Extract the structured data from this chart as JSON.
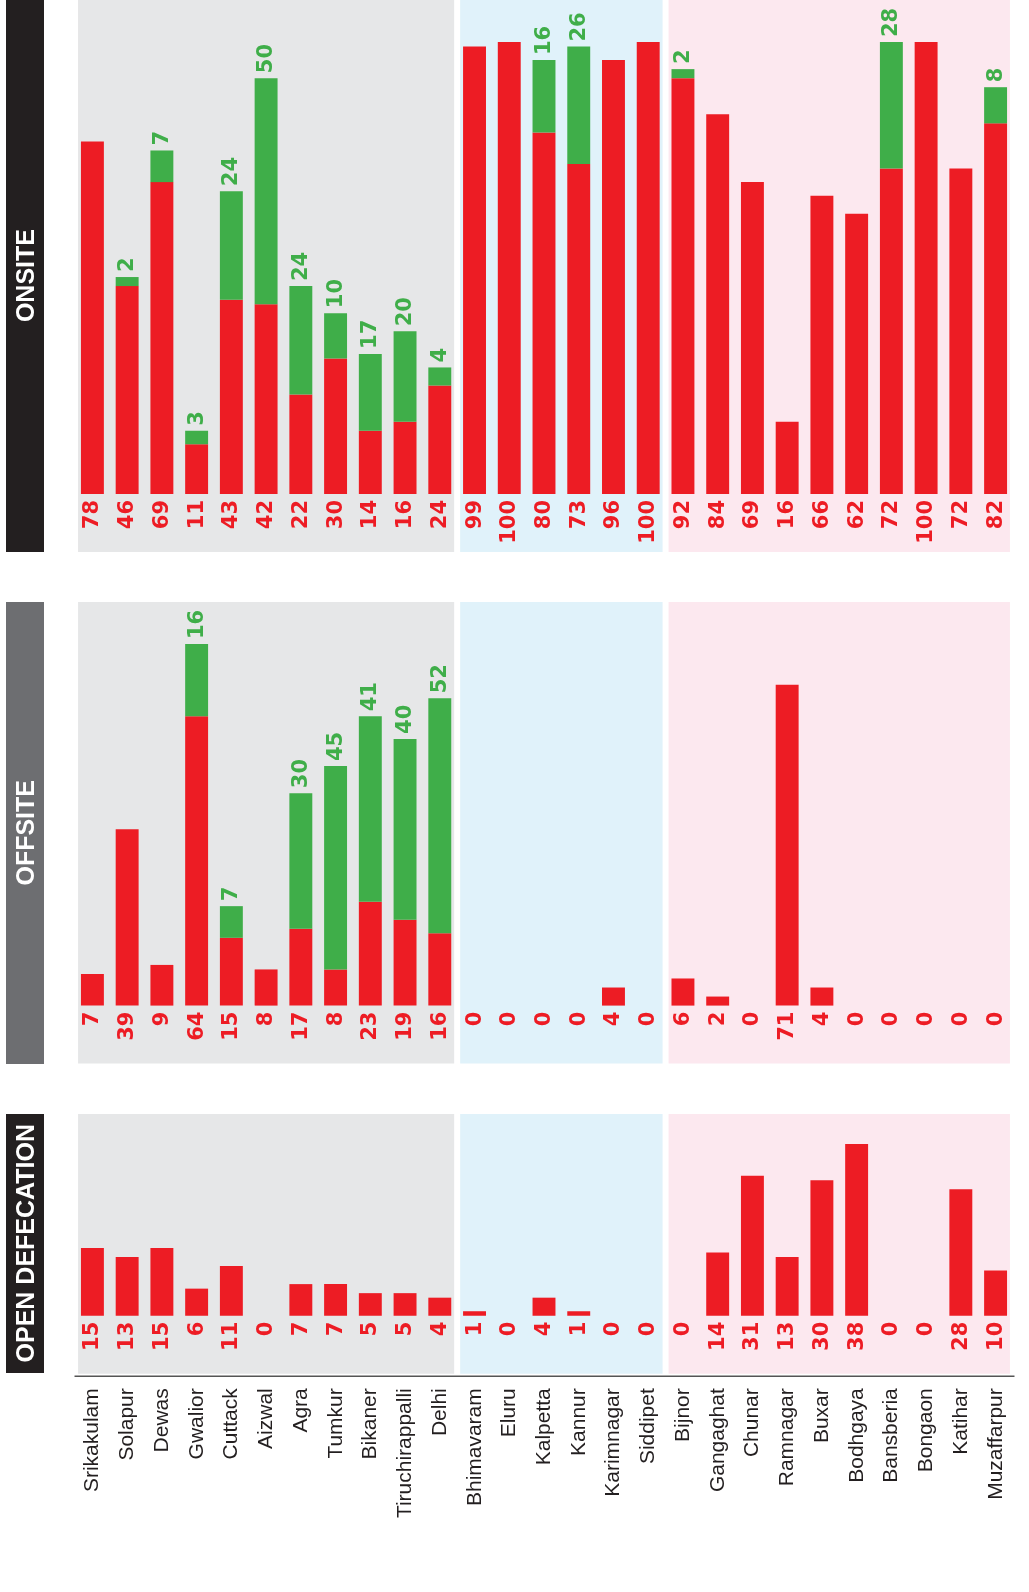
{
  "chart_data": [
    {
      "type": "bar",
      "title": "ONSITE",
      "stacked": true,
      "data_labels": true,
      "tick_labels": false,
      "categories": [
        "Srikakulam",
        "Solapur",
        "Dewas",
        "Gwalior",
        "Cuttack",
        "Aizwal",
        "Agra",
        "Tumkur",
        "Bikaner",
        "Tiruchirappalli",
        "Delhi",
        "Bhimavaram",
        "Eluru",
        "Kalpetta",
        "Kannur",
        "Karimnagar",
        "Siddipet",
        "Bijnor",
        "Gangaghat",
        "Chunar",
        "Ramnagar",
        "Buxar",
        "Bodhgaya",
        "Bansberia",
        "Bongaon",
        "Katihar",
        "Muzaffarpur"
      ],
      "series": [
        {
          "color": "#ed1c24",
          "values": [
            78,
            46,
            69,
            11,
            43,
            42,
            22,
            30,
            14,
            16,
            24,
            99,
            100,
            80,
            73,
            96,
            100,
            92,
            84,
            69,
            16,
            66,
            62,
            72,
            100,
            72,
            82
          ]
        },
        {
          "color": "#3fae49",
          "values": [
            null,
            2,
            7,
            3,
            24,
            50,
            24,
            10,
            17,
            20,
            4,
            null,
            null,
            16,
            26,
            null,
            null,
            2,
            null,
            null,
            null,
            null,
            null,
            28,
            null,
            null,
            8
          ]
        }
      ],
      "bands": [
        {
          "axis": "x",
          "from": "Srikakulam",
          "to": "Delhi",
          "color": "#e6e7e8"
        },
        {
          "axis": "x",
          "from": "Bhimavaram",
          "to": "Siddipet",
          "color": "#e0f2fa"
        },
        {
          "axis": "x",
          "from": "Bijnor",
          "to": "Muzaffarpur",
          "color": "#fce8ef"
        }
      ]
    },
    {
      "type": "bar",
      "title": "OFFSITE",
      "stacked": true,
      "data_labels": true,
      "tick_labels": false,
      "categories": [
        "Srikakulam",
        "Solapur",
        "Dewas",
        "Gwalior",
        "Cuttack",
        "Aizwal",
        "Agra",
        "Tumkur",
        "Bikaner",
        "Tiruchirappalli",
        "Delhi",
        "Bhimavaram",
        "Eluru",
        "Kalpetta",
        "Kannur",
        "Karimnagar",
        "Siddipet",
        "Bijnor",
        "Gangaghat",
        "Chunar",
        "Ramnagar",
        "Buxar",
        "Bodhgaya",
        "Bansberia",
        "Bongaon",
        "Katihar",
        "Muzaffarpur"
      ],
      "series": [
        {
          "color": "#ed1c24",
          "values": [
            7,
            39,
            9,
            64,
            15,
            8,
            17,
            8,
            23,
            19,
            16,
            0,
            0,
            0,
            0,
            4,
            0,
            6,
            2,
            0,
            71,
            4,
            0,
            0,
            0,
            0,
            0
          ]
        },
        {
          "color": "#3fae49",
          "values": [
            null,
            null,
            null,
            16,
            7,
            null,
            30,
            45,
            41,
            40,
            52,
            null,
            null,
            null,
            null,
            null,
            null,
            null,
            null,
            null,
            null,
            null,
            null,
            null,
            null,
            null,
            null
          ]
        }
      ],
      "bands": [
        {
          "axis": "x",
          "from": "Srikakulam",
          "to": "Delhi",
          "color": "#e6e7e8"
        },
        {
          "axis": "x",
          "from": "Bhimavaram",
          "to": "Siddipet",
          "color": "#e0f2fa"
        },
        {
          "axis": "x",
          "from": "Bijnor",
          "to": "Muzaffarpur",
          "color": "#fce8ef"
        }
      ]
    },
    {
      "type": "bar",
      "title": "OPEN DEFECATION",
      "data_labels": true,
      "tick_labels": "x",
      "categories": [
        "Srikakulam",
        "Solapur",
        "Dewas",
        "Gwalior",
        "Cuttack",
        "Aizwal",
        "Agra",
        "Tumkur",
        "Bikaner",
        "Tiruchirappalli",
        "Delhi",
        "Bhimavaram",
        "Eluru",
        "Kalpetta",
        "Kannur",
        "Karimnagar",
        "Siddipet",
        "Bijnor",
        "Gangaghat",
        "Chunar",
        "Ramnagar",
        "Buxar",
        "Bodhgaya",
        "Bansberia",
        "Bongaon",
        "Katihar",
        "Muzaffarpur"
      ],
      "series": [
        {
          "color": "#ed1c24",
          "values": [
            15,
            13,
            15,
            6,
            11,
            0,
            7,
            7,
            5,
            5,
            4,
            1,
            0,
            4,
            1,
            0,
            0,
            0,
            14,
            31,
            13,
            30,
            38,
            0,
            0,
            28,
            10
          ]
        }
      ],
      "bands": [
        {
          "axis": "x",
          "from": "Srikakulam",
          "to": "Delhi",
          "color": "#e6e7e8"
        },
        {
          "axis": "x",
          "from": "Bhimavaram",
          "to": "Siddipet",
          "color": "#e0f2fa"
        },
        {
          "axis": "x",
          "from": "Bijnor",
          "to": "Muzaffarpur",
          "color": "#fce8ef"
        }
      ]
    }
  ]
}
